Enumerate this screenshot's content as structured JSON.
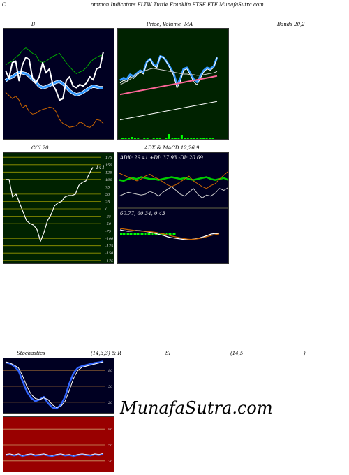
{
  "header": {
    "title": "ommon Indicators FLTW Tuttle Franklin FTSE ETF MunafaSutra.com",
    "c_letter": "C"
  },
  "labels": {
    "b": "B",
    "price": "Price,",
    "volume": "Volume",
    "ma": "MA",
    "bands": "Bands 20,2",
    "cci": "CCI 20",
    "adx": "ADX & MACD 12,26,9",
    "stoch": "Stochastics",
    "stoch_params": "(14,3,3) & R",
    "si": "SI",
    "rsi_params": "(14,5",
    "close_paren": ")"
  },
  "watermark": "MunafaSutra.com",
  "colors": {
    "navy": "#000022",
    "green": "#002200",
    "red": "#990000",
    "accent": "#0044ff"
  },
  "chart_data": [
    {
      "type": "line",
      "name": "Bollinger Bands",
      "series": [
        {
          "values": [
            80,
            76,
            72,
            75,
            70,
            60,
            63,
            55,
            52,
            53,
            56,
            58,
            59,
            61,
            60,
            55,
            45,
            40,
            38,
            35,
            36,
            37,
            42,
            40,
            36,
            35,
            38,
            45,
            44,
            40
          ]
        },
        {
          "values": [
            95,
            98,
            100,
            103,
            106,
            105,
            104,
            101,
            97,
            93,
            88,
            86,
            87,
            89,
            91,
            93,
            94,
            91,
            87,
            82,
            79,
            77,
            78,
            80,
            83,
            86,
            88,
            87,
            86,
            86
          ]
        },
        {
          "values": [
            115,
            118,
            120,
            125,
            128,
            134,
            137,
            134,
            130,
            128,
            120,
            118,
            120,
            123,
            126,
            128,
            130,
            124,
            118,
            113,
            108,
            104,
            106,
            108,
            112,
            118,
            122,
            125,
            127,
            128
          ]
        },
        {
          "values": [
            108,
            98,
            118,
            120,
            95,
            115,
            125,
            122,
            98,
            92,
            100,
            118,
            105,
            110,
            90,
            82,
            70,
            72,
            95,
            100,
            88,
            86,
            90,
            88,
            92,
            100,
            96,
            110,
            112,
            132
          ]
        }
      ],
      "ylim": [
        20,
        160
      ]
    },
    {
      "type": "line",
      "name": "Price Volume MA",
      "series": [
        {
          "values": [
            38,
            42,
            40,
            48,
            45,
            50,
            55,
            52,
            70,
            75,
            65,
            62,
            80,
            78,
            70,
            60,
            50,
            30,
            40,
            58,
            60,
            50,
            40,
            35,
            45,
            55,
            60,
            58,
            62,
            78
          ]
        },
        {
          "values": [
            35,
            38,
            40,
            44,
            48,
            52,
            55,
            57,
            58,
            60,
            61,
            60,
            59,
            58,
            57,
            56,
            55,
            54,
            53,
            52,
            52,
            51,
            51,
            50,
            50,
            51,
            52,
            53,
            54,
            56
          ]
        },
        {
          "values": [
            20,
            21,
            22,
            23,
            24,
            25,
            26,
            27,
            28,
            29,
            30,
            31,
            32,
            33,
            34,
            35,
            36,
            37,
            38,
            39,
            40,
            41,
            42,
            43,
            44,
            45,
            46,
            47,
            48,
            49
          ]
        },
        {
          "values": [
            -20,
            -19,
            -18,
            -17,
            -16,
            -15,
            -14,
            -13,
            -12,
            -11,
            -10,
            -9,
            -8,
            -7,
            -6,
            -5,
            -4,
            -3,
            -2,
            -1,
            0,
            1,
            2,
            3,
            4,
            5,
            6,
            7,
            8,
            9
          ]
        }
      ],
      "volume": [
        2,
        3,
        2,
        4,
        2,
        3,
        1,
        2,
        2,
        1,
        2,
        3,
        2,
        1,
        2,
        8,
        3,
        2,
        2,
        7,
        2,
        2,
        3,
        2,
        2,
        2,
        3,
        2,
        2,
        2
      ],
      "ylim": [
        -50,
        120
      ]
    },
    {
      "type": "line",
      "name": "CCI 20",
      "values": [
        100,
        100,
        40,
        50,
        20,
        -10,
        -40,
        -50,
        -55,
        -70,
        -110,
        -80,
        -40,
        -20,
        10,
        20,
        25,
        40,
        45,
        45,
        50,
        80,
        90,
        95,
        120,
        141
      ],
      "yticks": [
        175,
        150,
        125,
        100,
        75,
        50,
        25,
        0,
        -25,
        -50,
        -75,
        -100,
        -125,
        -150,
        -175
      ],
      "last_label": "141",
      "ylim": [
        -185,
        185
      ]
    },
    {
      "type": "line",
      "name": "ADX",
      "series": [
        {
          "name": "ADX",
          "values": [
            29,
            28,
            30,
            31,
            30,
            32,
            31,
            30,
            30,
            29,
            30,
            31,
            32,
            31,
            30,
            31,
            30,
            29,
            30,
            31,
            32,
            30,
            29,
            30,
            31,
            29
          ]
        },
        {
          "name": "+DI",
          "values": [
            36,
            34,
            32,
            30,
            28,
            30,
            33,
            35,
            32,
            30,
            27,
            24,
            22,
            24,
            27,
            30,
            33,
            28,
            25,
            22,
            20,
            23,
            25,
            30,
            34,
            38
          ]
        },
        {
          "name": "-DI",
          "values": [
            12,
            14,
            16,
            15,
            14,
            13,
            14,
            17,
            15,
            12,
            16,
            19,
            22,
            18,
            14,
            12,
            16,
            20,
            14,
            10,
            13,
            12,
            15,
            20,
            18,
            21
          ]
        }
      ],
      "summary": "ADX: 29.41 +DI: 37.93 -DI: 20.69",
      "ylim": [
        0,
        50
      ]
    },
    {
      "type": "line",
      "name": "MACD",
      "series": [
        {
          "name": "MACD",
          "values": [
            0.75,
            0.72,
            0.7,
            0.71,
            0.73,
            0.72,
            0.7,
            0.68,
            0.65,
            0.62,
            0.58,
            0.55,
            0.5,
            0.47,
            0.45,
            0.43,
            0.41,
            0.4,
            0.41,
            0.43,
            0.46,
            0.5,
            0.55,
            0.6,
            0.62,
            0.61
          ]
        },
        {
          "name": "Signal",
          "values": [
            0.8,
            0.78,
            0.76,
            0.74,
            0.72,
            0.71,
            0.7,
            0.69,
            0.68,
            0.66,
            0.63,
            0.6,
            0.57,
            0.53,
            0.5,
            0.47,
            0.44,
            0.42,
            0.41,
            0.42,
            0.44,
            0.47,
            0.51,
            0.55,
            0.58,
            0.6
          ]
        }
      ],
      "summary": "60.77, 60.34, 0.43",
      "ylim": [
        0,
        1
      ]
    },
    {
      "type": "line",
      "name": "Stochastics",
      "series": [
        {
          "values": [
            95,
            93,
            88,
            80,
            60,
            40,
            28,
            22,
            25,
            30,
            18,
            10,
            8,
            15,
            30,
            55,
            75,
            85,
            88,
            90,
            92,
            94,
            95,
            97
          ]
        },
        {
          "values": [
            96,
            94,
            90,
            85,
            70,
            50,
            35,
            27,
            25,
            28,
            25,
            15,
            10,
            12,
            22,
            42,
            65,
            80,
            86,
            88,
            90,
            92,
            94,
            96
          ]
        }
      ],
      "yticks": [
        80,
        50,
        20
      ],
      "ylim": [
        0,
        100
      ]
    },
    {
      "type": "line",
      "name": "RSI",
      "values": [
        32,
        33,
        31,
        33,
        30,
        32,
        33,
        31,
        32,
        33,
        31,
        30,
        32,
        33,
        31,
        32,
        30,
        32,
        33,
        32,
        31,
        33,
        32,
        34
      ],
      "yticks": [
        80,
        50,
        20
      ],
      "ylim": [
        0,
        100
      ]
    }
  ]
}
